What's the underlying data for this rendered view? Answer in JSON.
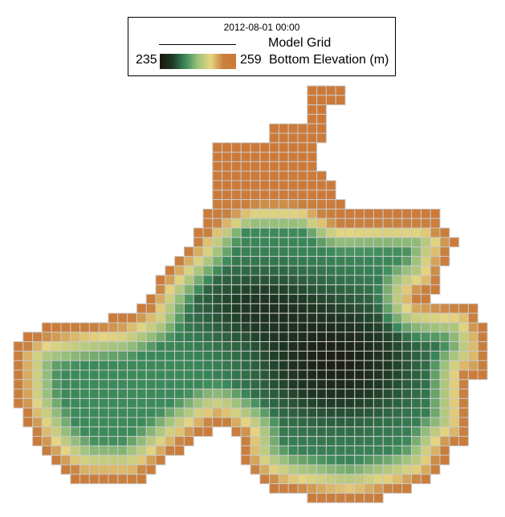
{
  "legend": {
    "timestamp": "2012-08-01 00:00",
    "grid_label": "Model Grid",
    "min_label": "235",
    "max_label": "259",
    "variable_label": "Bottom Elevation (m)"
  },
  "colormap": {
    "min": 235,
    "max": 259,
    "stops": [
      "#1c1610",
      "#1f3a26",
      "#3b8a5a",
      "#9cc27c",
      "#e6d57e",
      "#c9803e",
      "#cd7a38"
    ],
    "grid_line_color": "#c8c8c8"
  }
}
